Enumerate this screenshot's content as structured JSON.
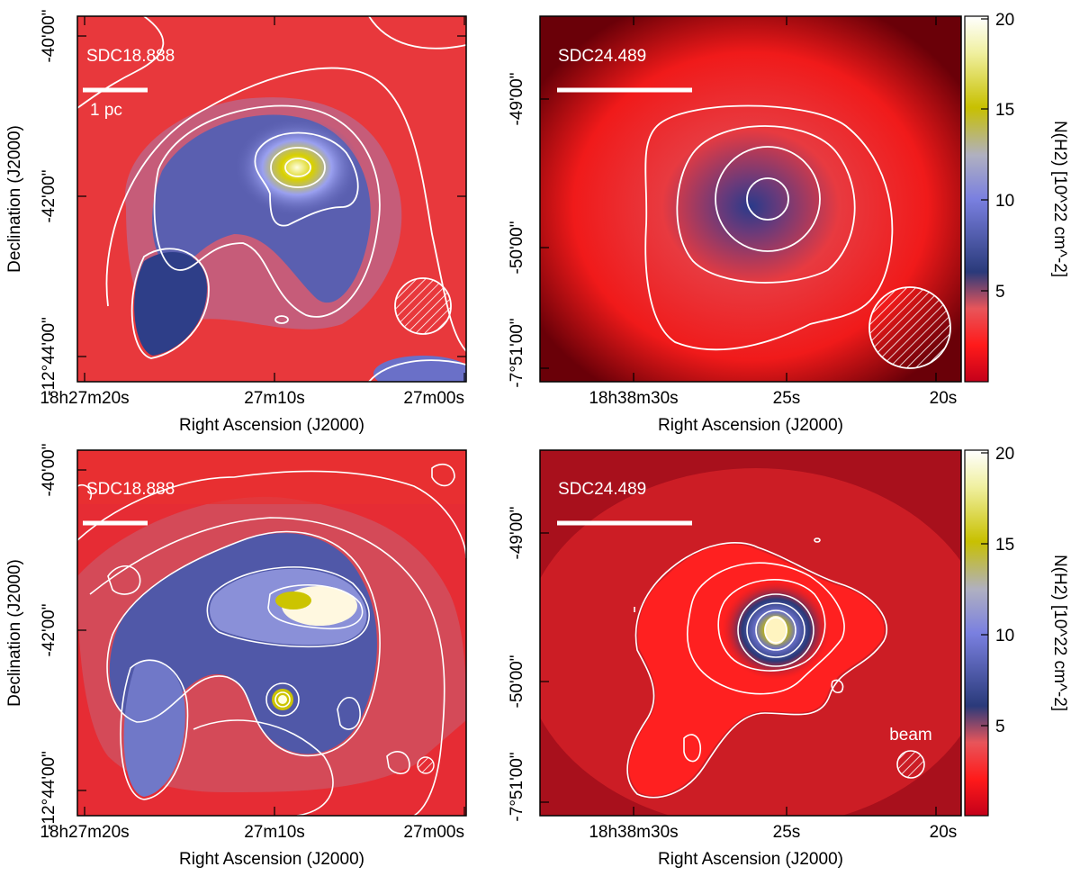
{
  "panels": [
    {
      "field": "SDC18.888",
      "scalebar_label": "1 pc",
      "beam_label": "",
      "xlabel": "Right Ascension (J2000)",
      "ylabel": "Declination (J2000)",
      "xticks": [
        "18h27m20s",
        "27m10s",
        "27m00s"
      ],
      "yticks": [
        "-40'00\"",
        "-42'00\"",
        "-12°44'00\""
      ]
    },
    {
      "field": "SDC24.489",
      "scalebar_label": "",
      "beam_label": "",
      "xlabel": "Right Ascension (J2000)",
      "ylabel": "",
      "xticks": [
        "18h38m30s",
        "25s",
        "20s"
      ],
      "yticks": [
        "-49'00\"",
        "-50'00\"",
        "-7°51'00\""
      ]
    },
    {
      "field": "SDC18.888",
      "scalebar_label": "",
      "beam_label": "",
      "xlabel": "Right Ascension (J2000)",
      "ylabel": "Declination (J2000)",
      "xticks": [
        "18h27m20s",
        "27m10s",
        "27m00s"
      ],
      "yticks": [
        "-40'00\"",
        "-42'00\"",
        "-12°44'00\""
      ]
    },
    {
      "field": "SDC24.489",
      "scalebar_label": "",
      "beam_label": "beam",
      "xlabel": "Right Ascension (J2000)",
      "ylabel": "",
      "xticks": [
        "18h38m30s",
        "25s",
        "20s"
      ],
      "yticks": [
        "-49'00\"",
        "-50'00\"",
        "-7°51'00\""
      ]
    }
  ],
  "colorbars": [
    {
      "label": "N(H2) [10^22 cm^-2]",
      "ticks": [
        "20",
        "15",
        "10",
        "5"
      ],
      "range": [
        0,
        20
      ]
    },
    {
      "label": "N(H2) [10^22 cm^-2]",
      "ticks": [
        "20",
        "15",
        "10",
        "5"
      ],
      "range": [
        0,
        20
      ]
    }
  ],
  "colormap": [
    "#c4001a",
    "#ff1a1a",
    "#e8555a",
    "#2a3a7a",
    "#6a70c8",
    "#9aa0f0",
    "#c0c0c0",
    "#c8c000",
    "#ffffff"
  ]
}
